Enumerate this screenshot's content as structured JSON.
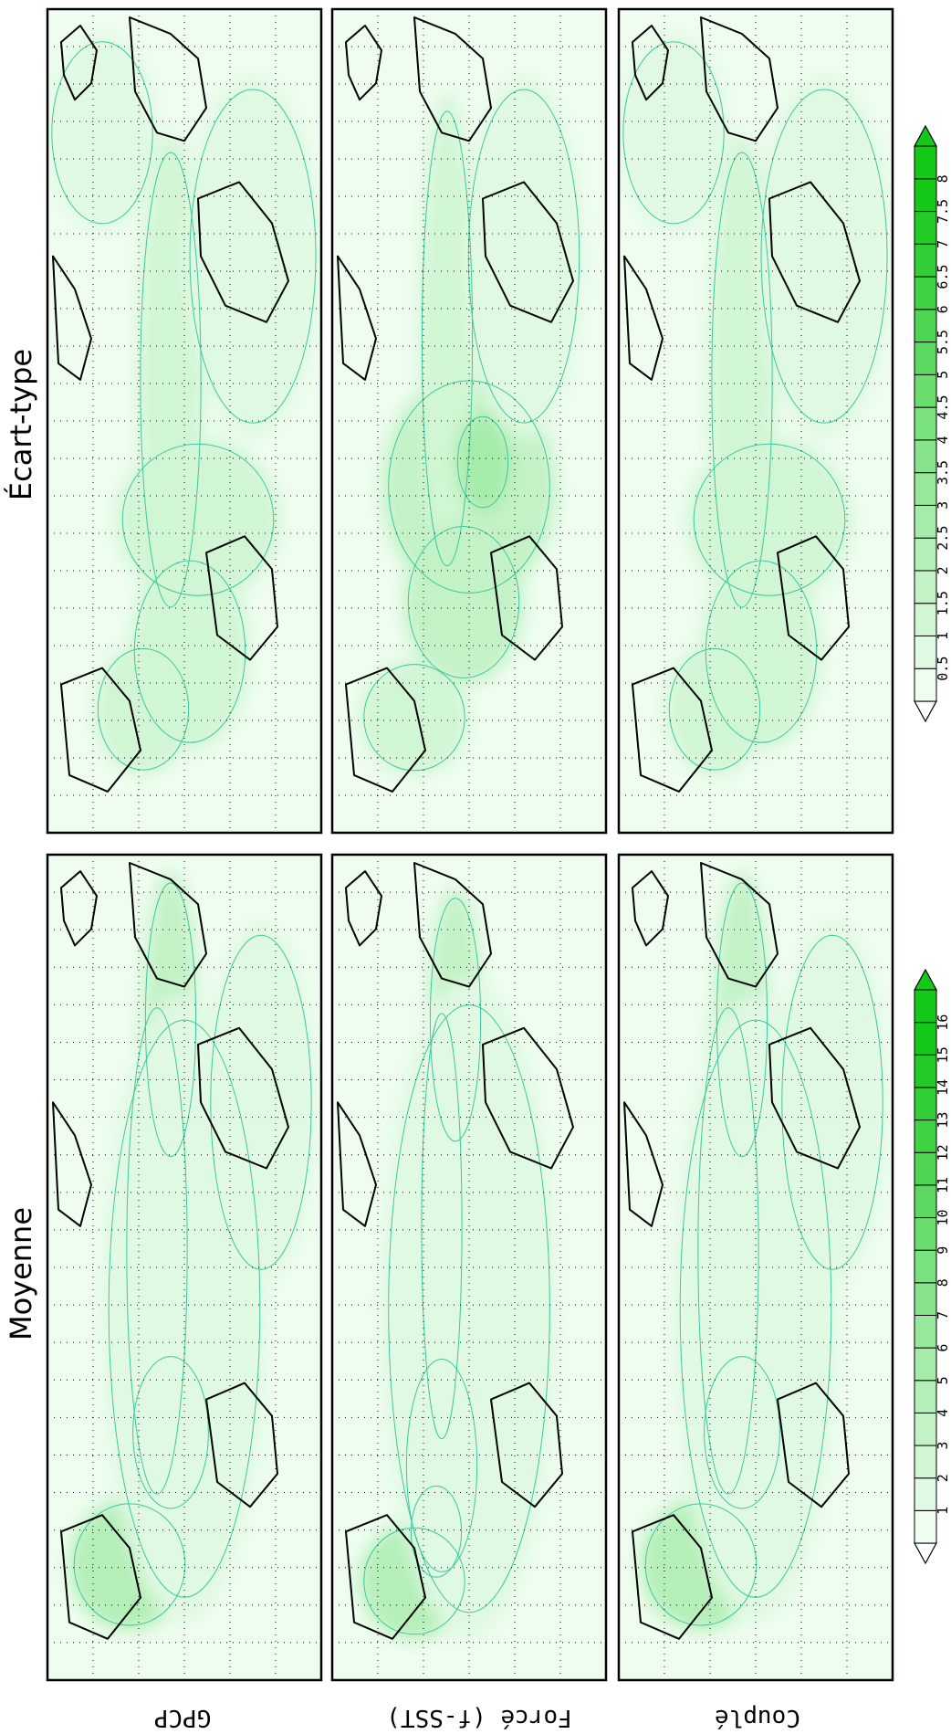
{
  "figure": {
    "section_titles": {
      "mean": "Moyenne",
      "std": "Écart-type"
    },
    "row_labels": [
      "GPCP",
      "Forcé (f-SST)",
      "Couplé"
    ]
  },
  "colorbars": {
    "mean": {
      "ticks": [
        "1",
        "2",
        "3",
        "4",
        "5",
        "6",
        "7",
        "8",
        "9",
        "10",
        "11",
        "12",
        "13",
        "14",
        "15",
        "16"
      ]
    },
    "std": {
      "ticks": [
        "0.5",
        "1",
        "1.5",
        "2",
        "2.5",
        "3",
        "3.5",
        "4",
        "4.5",
        "5",
        "5.5",
        "6",
        "6.5",
        "7",
        "7.5",
        "8"
      ]
    }
  },
  "colors": {
    "palette": [
      "#ffffff",
      "#eefdef",
      "#e0f9e2",
      "#d1f6d4",
      "#c3f2c6",
      "#b4efb8",
      "#a5eba9",
      "#97e89b",
      "#88e48c",
      "#79e17d",
      "#6bdd6f",
      "#5cd960",
      "#4ed652",
      "#3fd243",
      "#31cf35",
      "#22cb26",
      "#14c818"
    ],
    "contour_thin": "#3cc8a0",
    "contour_thick": "#4a7a8a",
    "coast": "#000000"
  }
}
